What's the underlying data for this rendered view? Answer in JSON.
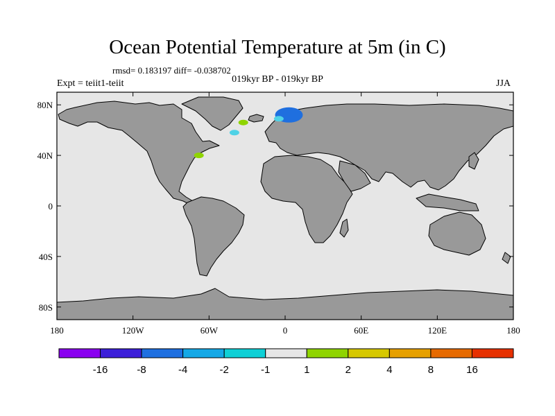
{
  "header": {
    "title": "Ocean Potential Temperature at 5m (in C)",
    "stats": "rmsd= 0.183197  diff= -0.038702",
    "subtitle": "019kyr BP - 019kyr BP",
    "experiment": "Expt = teiit1-teiit",
    "season": "JJA"
  },
  "map": {
    "projection": "cylindrical equidistant",
    "lon_range": [
      -180,
      180
    ],
    "lat_range": [
      -90,
      90
    ],
    "x_ticks": [
      "180",
      "120W",
      "60W",
      "0",
      "60E",
      "120E",
      "180"
    ],
    "x_tick_values": [
      -180,
      -120,
      -60,
      0,
      60,
      120,
      180
    ],
    "y_ticks": [
      "80N",
      "40N",
      "0",
      "40S",
      "80S"
    ],
    "y_tick_values": [
      80,
      40,
      0,
      -40,
      -80
    ],
    "ocean_color": "#e6e6e6",
    "land_color": "#999999",
    "anomalies": [
      {
        "lon": 3,
        "lat": 72,
        "value": -8,
        "color": "#1f6fdf"
      },
      {
        "lon": -5,
        "lat": 69,
        "value": -2,
        "color": "#4fd2e6"
      },
      {
        "lon": -33,
        "lat": 66,
        "value": 2,
        "color": "#8fd400"
      },
      {
        "lon": -40,
        "lat": 58,
        "value": -1,
        "color": "#4fd2e6"
      },
      {
        "lon": -68,
        "lat": 40,
        "value": 1,
        "color": "#8fd400"
      }
    ]
  },
  "colorbar": {
    "colors": [
      "#8a00f0",
      "#3c1fd9",
      "#1e6fe0",
      "#15a8e6",
      "#0fd0d6",
      "#e6e6e6",
      "#8fd400",
      "#d6c800",
      "#e6a000",
      "#e66a00",
      "#e63000"
    ],
    "labels": [
      "-16",
      "-8",
      "-4",
      "-2",
      "-1",
      "1",
      "2",
      "4",
      "8",
      "16"
    ]
  }
}
